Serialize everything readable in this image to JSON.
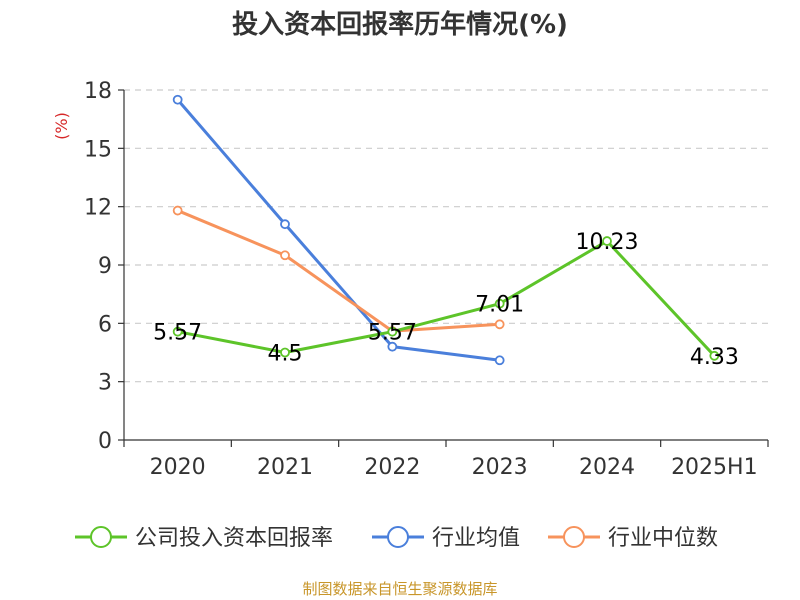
{
  "chart_data": {
    "type": "line",
    "title": "投入资本回报率历年情况(%)",
    "ylabel": "(%)",
    "categories": [
      "2020",
      "2021",
      "2022",
      "2023",
      "2024",
      "2025H1"
    ],
    "ylim": [
      0,
      18
    ],
    "yticks": [
      0,
      3,
      6,
      9,
      12,
      15,
      18
    ],
    "grid": true,
    "legend_position": "bottom",
    "series": [
      {
        "name": "公司投入资本回报率",
        "color": "#5dc429",
        "values": [
          5.57,
          4.5,
          5.57,
          7.01,
          10.23,
          4.33
        ],
        "labels": [
          "5.57",
          "4.5",
          "5.57",
          "7.01",
          "10.23",
          "4.33"
        ]
      },
      {
        "name": "行业均值",
        "color": "#4a7fdb",
        "values": [
          17.5,
          11.1,
          4.8,
          4.1,
          null,
          null
        ]
      },
      {
        "name": "行业中位数",
        "color": "#f7935c",
        "values": [
          11.8,
          9.5,
          5.6,
          5.95,
          null,
          null
        ]
      }
    ]
  },
  "footer": {
    "source": "制图数据来自恒生聚源数据库"
  }
}
